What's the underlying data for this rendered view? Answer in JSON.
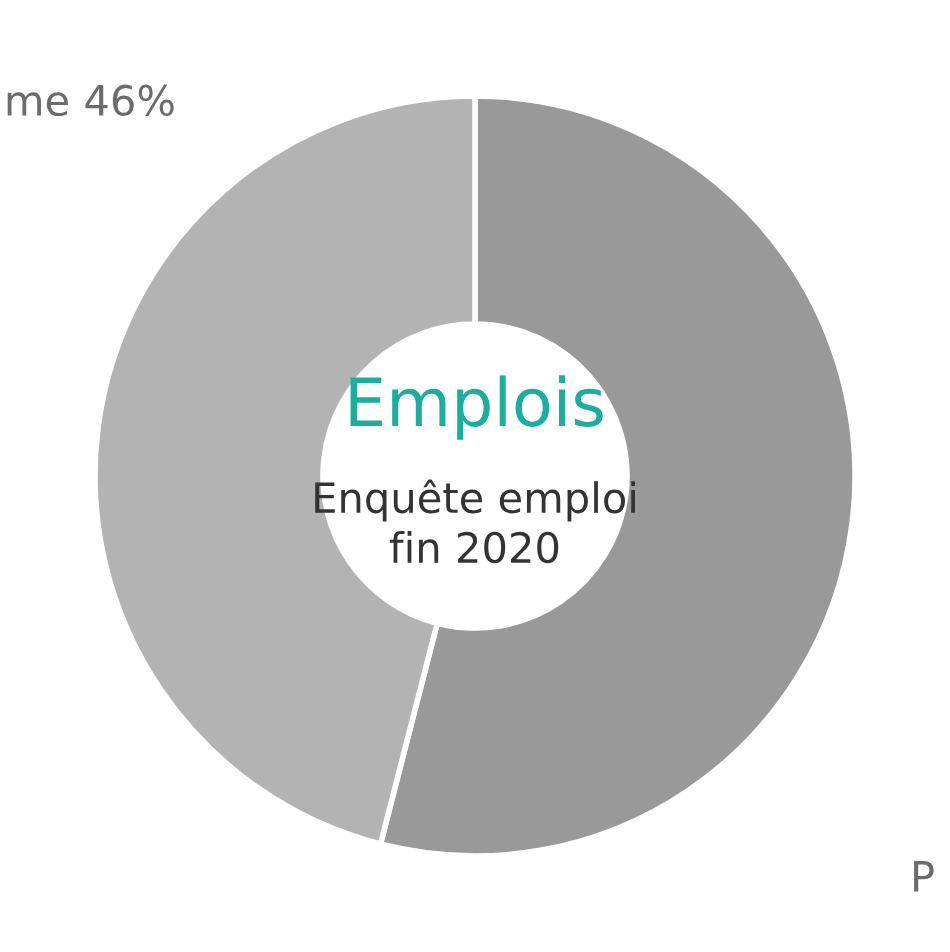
{
  "chart_data": {
    "type": "donut",
    "title": "Emplois",
    "subtitle": "Enquête emploi\nfin 2020",
    "categories": [
      "P",
      "me"
    ],
    "values": [
      54,
      46
    ],
    "value_labels": [
      null,
      "46%"
    ],
    "colors": [
      "#999999",
      "#b3b3b3"
    ],
    "legend": false
  }
}
